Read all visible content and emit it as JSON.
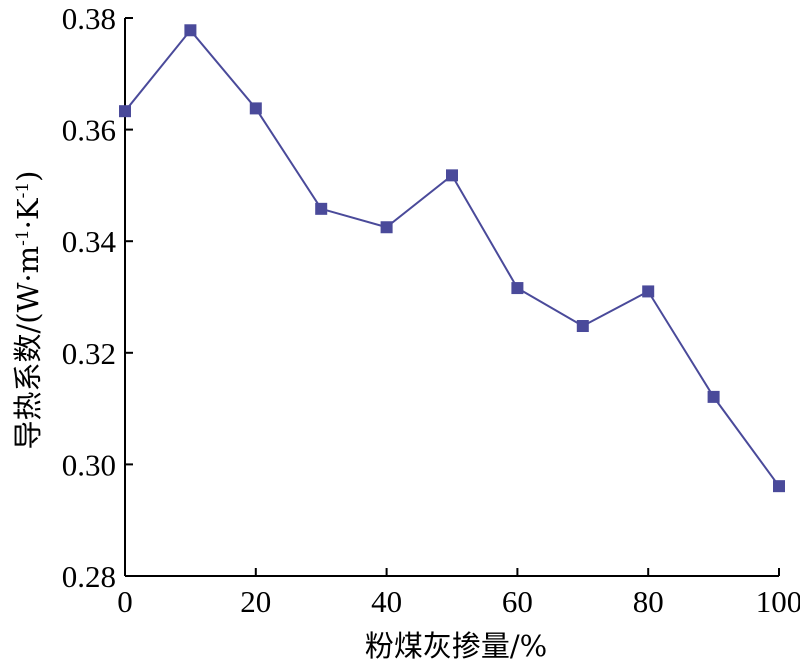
{
  "chart_data": {
    "type": "line",
    "title": "",
    "xlabel": "粉煤灰掺量/%",
    "ylabel_main": "导热系数/(W·m",
    "ylabel_sup1": "-1",
    "ylabel_mid": "·K",
    "ylabel_sup2": "-1",
    "ylabel_end": ")",
    "xlim": [
      0,
      100
    ],
    "ylim": [
      0.28,
      0.38
    ],
    "xticks": [
      0,
      20,
      40,
      60,
      80,
      100
    ],
    "xtick_labels": [
      "0",
      "20",
      "40",
      "60",
      "80",
      "100"
    ],
    "yticks": [
      0.28,
      0.3,
      0.32,
      0.34,
      0.36,
      0.38
    ],
    "ytick_labels": [
      "0.28",
      "0.30",
      "0.32",
      "0.34",
      "0.36",
      "0.38"
    ],
    "grid": false,
    "marker": "square",
    "series": [
      {
        "color": "#4a4a9a",
        "x": [
          0,
          10,
          20,
          30,
          40,
          50,
          60,
          70,
          80,
          90,
          100
        ],
        "y": [
          0.3633,
          0.3778,
          0.3638,
          0.3458,
          0.3425,
          0.3518,
          0.3316,
          0.3248,
          0.331,
          0.3121,
          0.2961
        ]
      }
    ]
  }
}
